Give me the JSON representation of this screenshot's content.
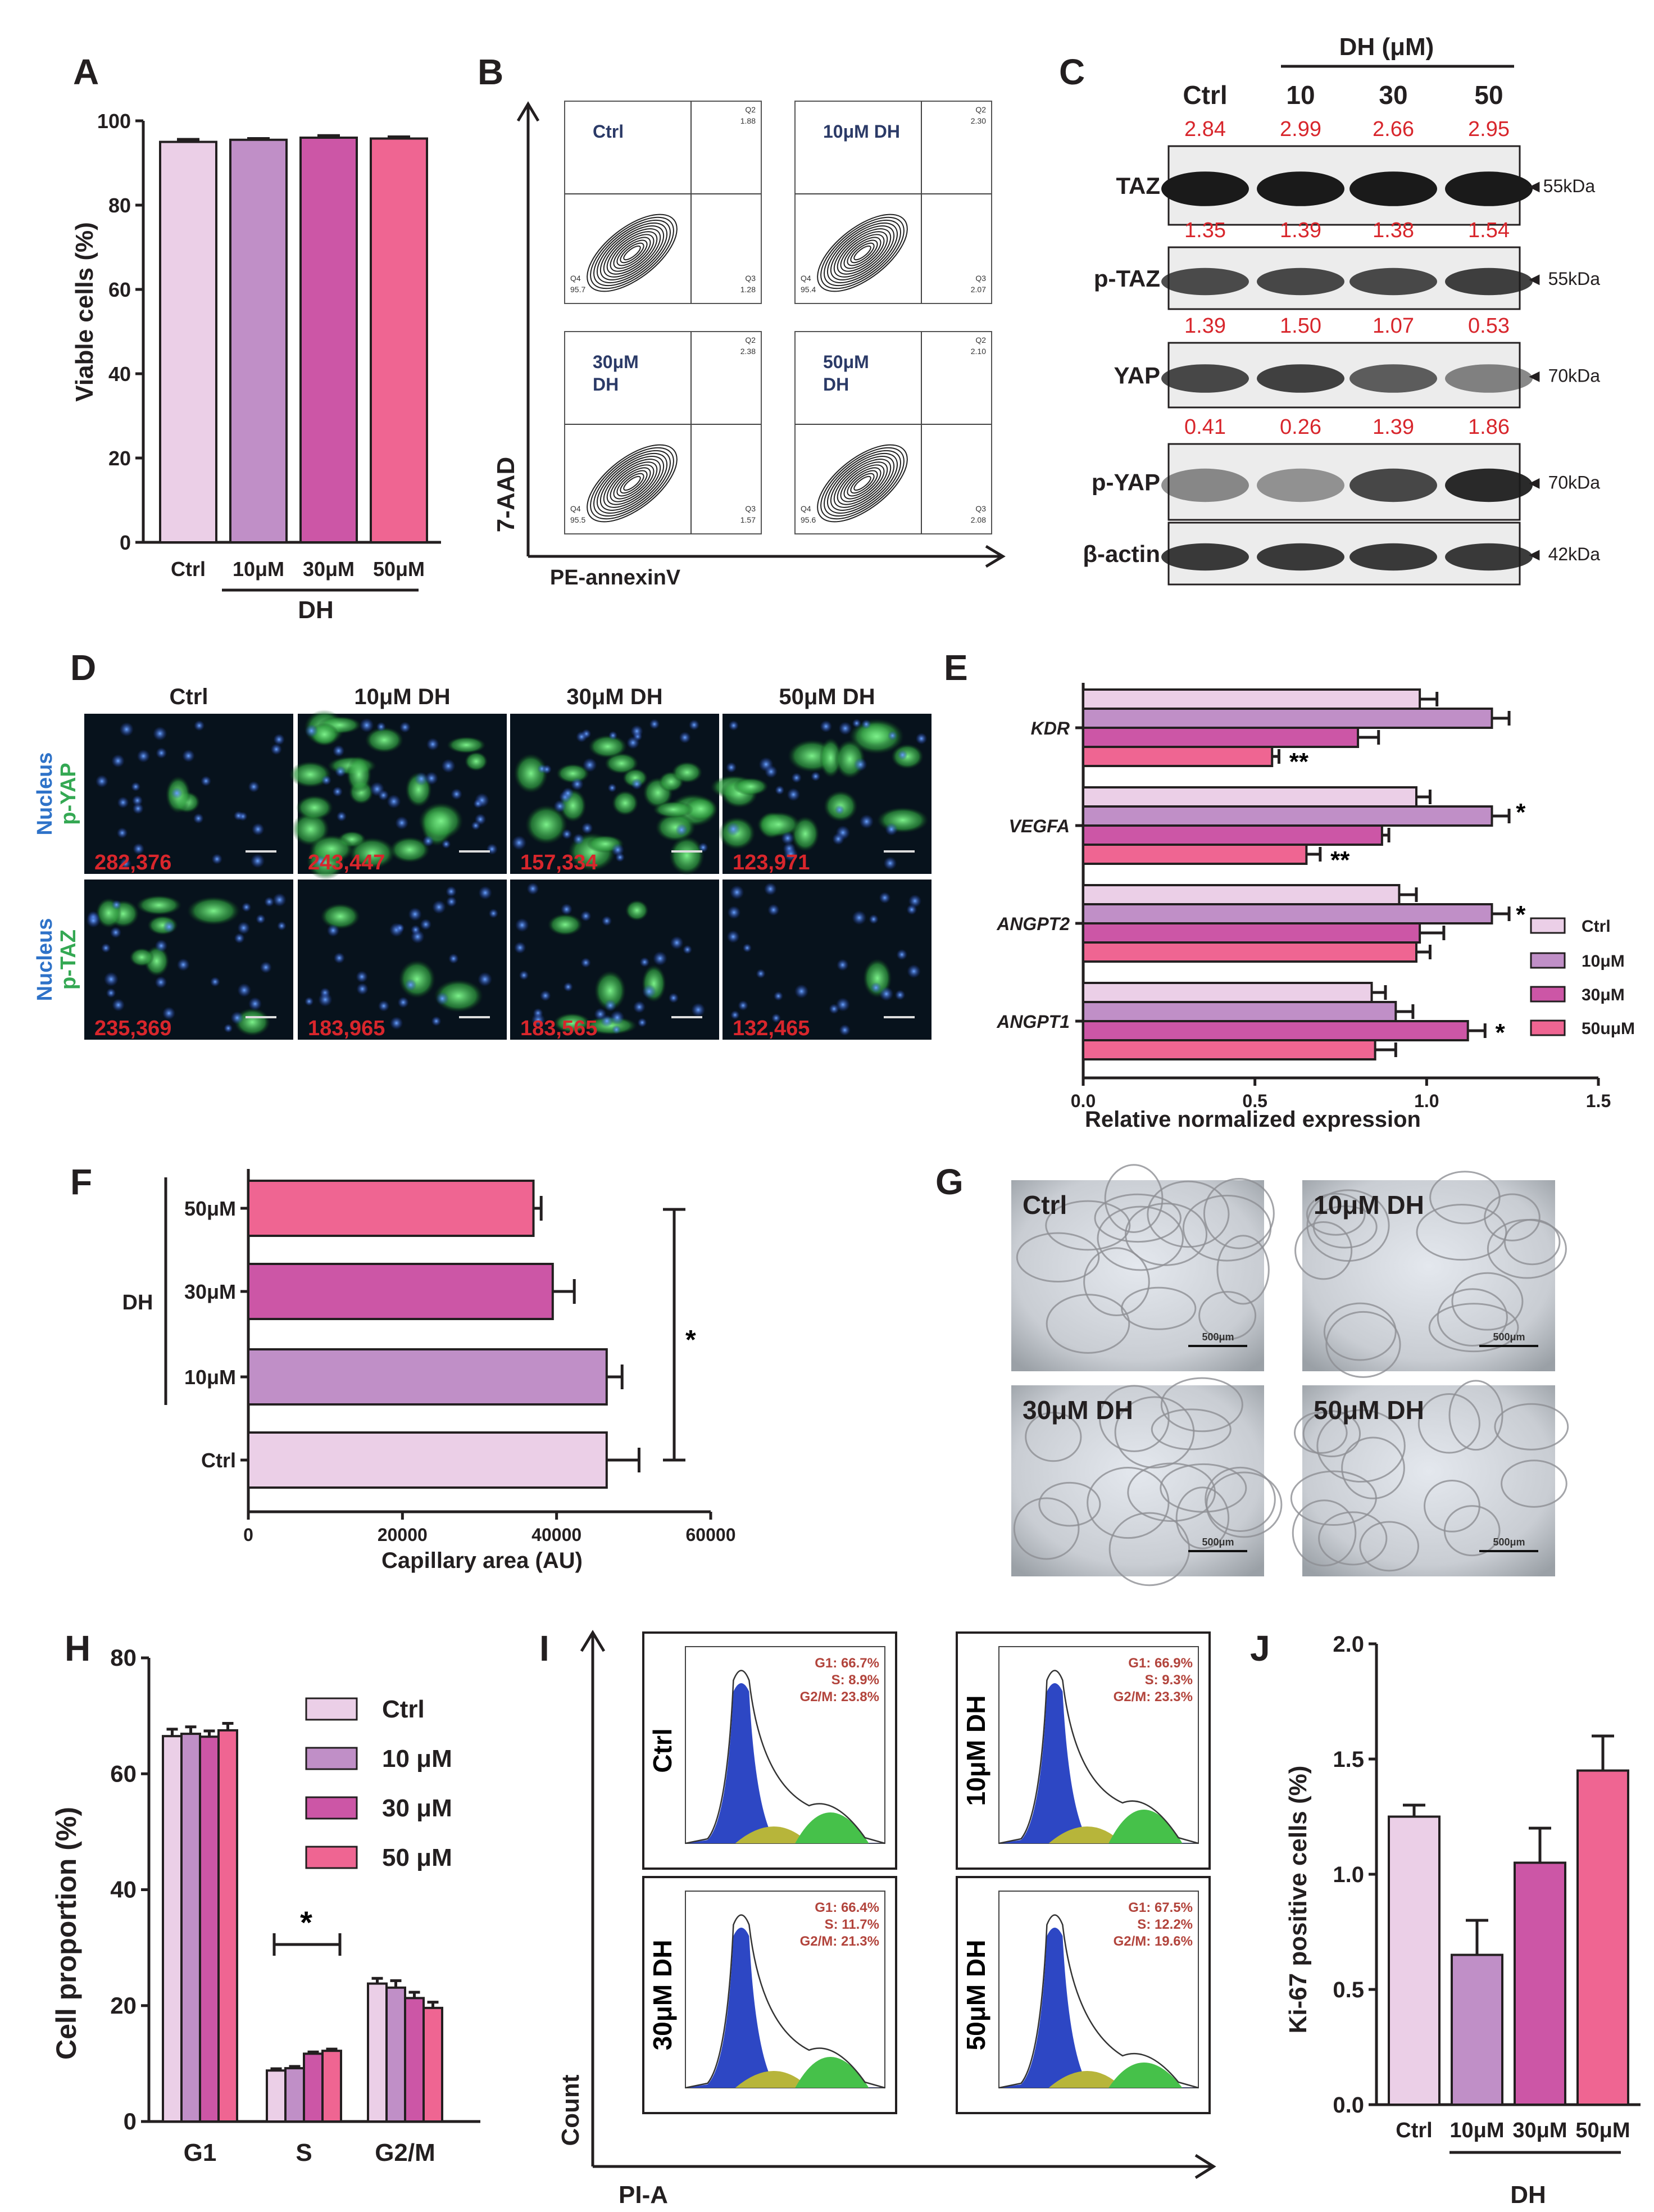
{
  "colors": {
    "ctrl": "#ebcfe7",
    "dh10": "#c08fc7",
    "dh30": "#cc56a6",
    "dh50": "#ef6592",
    "gate_navy": "#2b3a67",
    "number_red": "#d8262c"
  },
  "panels": {
    "A": "A",
    "B": "B",
    "C": "C",
    "D": "D",
    "E": "E",
    "F": "F",
    "G": "G",
    "H": "H",
    "I": "I",
    "J": "J"
  },
  "chart_data": [
    {
      "id": "A",
      "type": "bar",
      "categories": [
        "Ctrl",
        "10μM",
        "30μM",
        "50μM"
      ],
      "values": [
        95,
        95.5,
        96,
        95.8
      ],
      "errors": [
        0.6,
        0.3,
        0.5,
        0.4
      ],
      "ylabel": "Viable cells (%)",
      "ylim": [
        0,
        100
      ],
      "yticks": [
        "0",
        "20",
        "40",
        "60",
        "80",
        "100"
      ],
      "group_label": "DH"
    },
    {
      "id": "E",
      "type": "bar",
      "orientation": "horizontal",
      "categories": [
        "KDR",
        "VEGFA",
        "ANGPT2",
        "ANGPT1"
      ],
      "series": [
        {
          "name": "Ctrl",
          "values": [
            0.98,
            0.97,
            0.92,
            0.84
          ],
          "errors": [
            0.05,
            0.04,
            0.05,
            0.04
          ]
        },
        {
          "name": "10μM",
          "values": [
            1.19,
            1.19,
            1.19,
            0.91
          ],
          "errors": [
            0.05,
            0.05,
            0.05,
            0.05
          ]
        },
        {
          "name": "30μM",
          "values": [
            0.8,
            0.87,
            0.98,
            1.12
          ],
          "errors": [
            0.06,
            0.02,
            0.07,
            0.05
          ]
        },
        {
          "name": "50uμM",
          "values": [
            0.55,
            0.65,
            0.97,
            0.85
          ],
          "errors": [
            0.02,
            0.04,
            0.04,
            0.06
          ]
        }
      ],
      "significance": [
        "**",
        "*",
        "**",
        "*",
        "*"
      ],
      "xlabel": "Relative normalized expression",
      "xlim": [
        0,
        1.5
      ],
      "xticks": [
        "0.0",
        "0.5",
        "1.0",
        "1.5"
      ]
    },
    {
      "id": "F",
      "type": "bar",
      "orientation": "horizontal",
      "categories": [
        "50μM",
        "30μM",
        "10μM",
        "Ctrl"
      ],
      "values": [
        37000,
        39500,
        46500,
        46500
      ],
      "errors": [
        1000,
        2800,
        2000,
        4200
      ],
      "xlabel": "Capillary area (AU)",
      "xlim": [
        0,
        60000
      ],
      "xticks": [
        "0",
        "20000",
        "40000",
        "60000"
      ],
      "group_label": "DH",
      "significance": "*"
    },
    {
      "id": "H",
      "type": "bar",
      "categories": [
        "G1",
        "S",
        "G2/M"
      ],
      "series": [
        {
          "name": "Ctrl",
          "values": [
            66.5,
            8.8,
            23.8
          ],
          "errors": [
            1.2,
            0.3,
            0.9
          ]
        },
        {
          "name": "10 μM",
          "values": [
            66.9,
            9.2,
            23.1
          ],
          "errors": [
            1.2,
            0.3,
            1.2
          ]
        },
        {
          "name": "30 μM",
          "values": [
            66.4,
            11.7,
            21.3
          ],
          "errors": [
            1.0,
            0.3,
            1.0
          ]
        },
        {
          "name": "50 μM",
          "values": [
            67.5,
            12.2,
            19.6
          ],
          "errors": [
            1.2,
            0.3,
            1.0
          ]
        }
      ],
      "ylabel": "Cell proportion (%)",
      "ylim": [
        0,
        80
      ],
      "yticks": [
        "0",
        "20",
        "40",
        "60",
        "80"
      ],
      "significance": "*"
    },
    {
      "id": "J",
      "type": "bar",
      "categories": [
        "Ctrl",
        "10μM",
        "30μM",
        "50μM"
      ],
      "values": [
        1.25,
        0.65,
        1.05,
        1.45
      ],
      "errors": [
        0.05,
        0.15,
        0.15,
        0.15
      ],
      "ylabel": "Ki-67 positive cells (%)",
      "ylim": [
        0,
        2.0
      ],
      "yticks": [
        "0.0",
        "0.5",
        "1.0",
        "1.5",
        "2.0"
      ],
      "group_label": "DH"
    }
  ],
  "flow_B": {
    "ylabel": "7-AAD",
    "xlabel": "PE-annexinV",
    "plots": [
      {
        "label": "Ctrl",
        "q2": "Q2",
        "q2v": "1.88",
        "q3": "Q3",
        "q3v": "1.28",
        "q4": "Q4",
        "q4v": "95.7"
      },
      {
        "label": "10μM\nDH",
        "label1": "10μM",
        "label2": "DH",
        "q2": "Q2",
        "q2v": "2.30",
        "q3": "Q3",
        "q3v": "2.07",
        "q4": "Q4",
        "q4v": "95.4"
      },
      {
        "label1": "30μM",
        "label2": "DH",
        "q2": "Q2",
        "q2v": "2.38",
        "q3": "Q3",
        "q3v": "1.57",
        "q4": "Q4",
        "q4v": "95.5"
      },
      {
        "label1": "50μM",
        "label2": "DH",
        "q2": "Q2",
        "q2v": "2.10",
        "q3": "Q3",
        "q3v": "2.08",
        "q4": "Q4",
        "q4v": "95.6"
      }
    ]
  },
  "blot_C": {
    "header": "DH (μM)",
    "lanes": [
      "Ctrl",
      "10",
      "30",
      "50"
    ],
    "rows": [
      {
        "name": "TAZ",
        "values": [
          "2.84",
          "2.99",
          "2.66",
          "2.95"
        ],
        "size": "◄55kDa"
      },
      {
        "name": "p-TAZ",
        "values": [
          "1.35",
          "1.39",
          "1.38",
          "1.54"
        ],
        "size": "◄ 55kDa"
      },
      {
        "name": "YAP",
        "values": [
          "1.39",
          "1.50",
          "1.07",
          "0.53"
        ],
        "size": "◄ 70kDa"
      },
      {
        "name": "p-YAP",
        "values": [
          "0.41",
          "0.26",
          "1.39",
          "1.86"
        ],
        "size": "◄ 70kDa"
      },
      {
        "name": "β-actin",
        "values": [],
        "size": "◄ 42kDa"
      }
    ]
  },
  "micro_D": {
    "columns": [
      "Ctrl",
      "10μM DH",
      "30μM DH",
      "50μM DH"
    ],
    "row1_label1": "Nucleus",
    "row1_label2": "p-YAP",
    "row2_label1": "Nucleus",
    "row2_label2": "p-TAZ",
    "row1_values": [
      "282,376",
      "243,447",
      "157,334",
      "123,971"
    ],
    "row2_values": [
      "235,369",
      "183,965",
      "183,565",
      "132,465"
    ]
  },
  "tube_G": {
    "labels": [
      "Ctrl",
      "10μM DH",
      "30μM DH",
      "50μM DH"
    ],
    "scale": "500μm"
  },
  "cycle_I": {
    "ylabel": "Count",
    "xlabel": "PI-A",
    "plots": [
      {
        "label": "Ctrl",
        "g1": "G1: 66.7%",
        "s": "S: 8.9%",
        "g2m": "G2/M: 23.8%"
      },
      {
        "label": "10μM DH",
        "g1": "G1: 66.9%",
        "s": "S: 9.3%",
        "g2m": "G2/M: 23.3%"
      },
      {
        "label": "30μM DH",
        "g1": "G1: 66.4%",
        "s": "S: 11.7%",
        "g2m": "G2/M: 21.3%"
      },
      {
        "label": "50μM DH",
        "g1": "G1: 67.5%",
        "s": "S: 12.2%",
        "g2m": "G2/M: 19.6%"
      }
    ]
  }
}
